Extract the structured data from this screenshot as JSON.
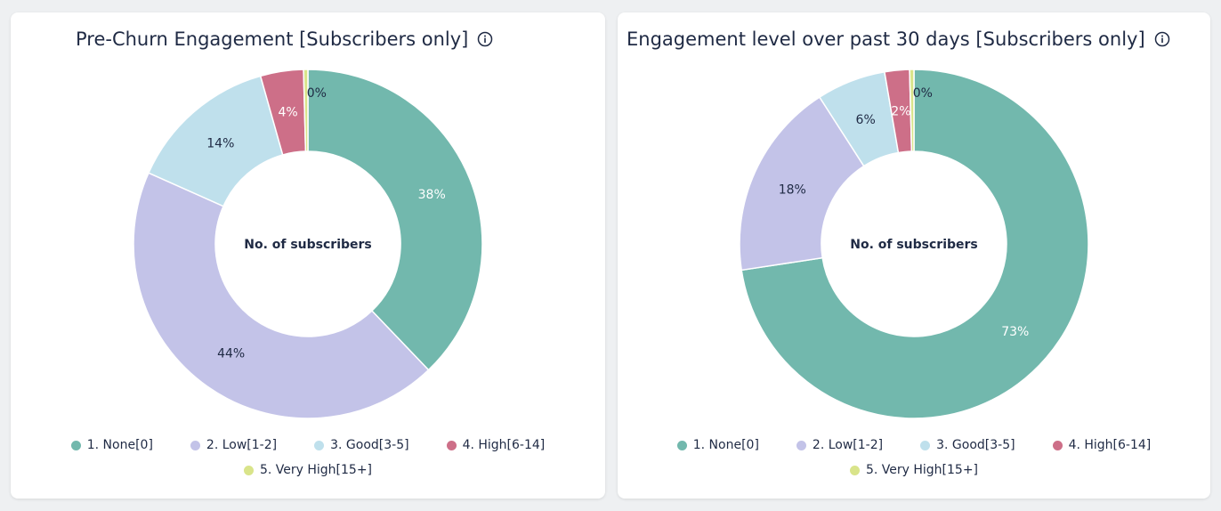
{
  "charts": [
    {
      "title": "Pre-Churn Engagement [Subscribers only]",
      "center_label": "No. of subscribers",
      "info_icon": "info-circle-icon"
    },
    {
      "title": "Engagement level over past 30 days [Subscribers only]",
      "center_label": "No. of subscribers",
      "info_icon": "info-circle-icon"
    }
  ],
  "legend": {
    "items": [
      {
        "label": "1. None[0]",
        "color": "#72b8ad"
      },
      {
        "label": "2. Low[1-2]",
        "color": "#c3c3e8"
      },
      {
        "label": "3. Good[3-5]",
        "color": "#bfe0ec"
      },
      {
        "label": "4. High[6-14]",
        "color": "#cd6f88"
      },
      {
        "label": "5. Very High[15+]",
        "color": "#d9e48a"
      }
    ]
  },
  "chart_data": [
    {
      "type": "pie",
      "title": "Pre-Churn Engagement [Subscribers only]",
      "categories": [
        "1. None[0]",
        "2. Low[1-2]",
        "3. Good[3-5]",
        "4. High[6-14]",
        "5. Very High[15+]"
      ],
      "values": [
        38,
        44,
        14,
        4,
        0.4
      ],
      "labels": [
        "38%",
        "44%",
        "14%",
        "4%",
        "0%"
      ],
      "colors": [
        "#72b8ad",
        "#c3c3e8",
        "#bfe0ec",
        "#cd6f88",
        "#d9e48a"
      ],
      "label_colors": [
        "#ffffff",
        "#1f2a44",
        "#1f2a44",
        "#ffffff",
        "#1f2a44"
      ],
      "donut": true,
      "center_label": "No. of subscribers",
      "legend_position": "bottom"
    },
    {
      "type": "pie",
      "title": "Engagement level over past 30 days [Subscribers only]",
      "categories": [
        "1. None[0]",
        "2. Low[1-2]",
        "3. Good[3-5]",
        "4. High[6-14]",
        "5. Very High[15+]"
      ],
      "values": [
        72.6,
        18.3,
        6.4,
        2.3,
        0.4
      ],
      "labels": [
        "73%",
        "18%",
        "6%",
        "2%",
        "0%"
      ],
      "colors": [
        "#72b8ad",
        "#c3c3e8",
        "#bfe0ec",
        "#cd6f88",
        "#d9e48a"
      ],
      "label_colors": [
        "#ffffff",
        "#1f2a44",
        "#1f2a44",
        "#ffffff",
        "#1f2a44"
      ],
      "donut": true,
      "center_label": "No. of subscribers",
      "legend_position": "bottom"
    }
  ]
}
